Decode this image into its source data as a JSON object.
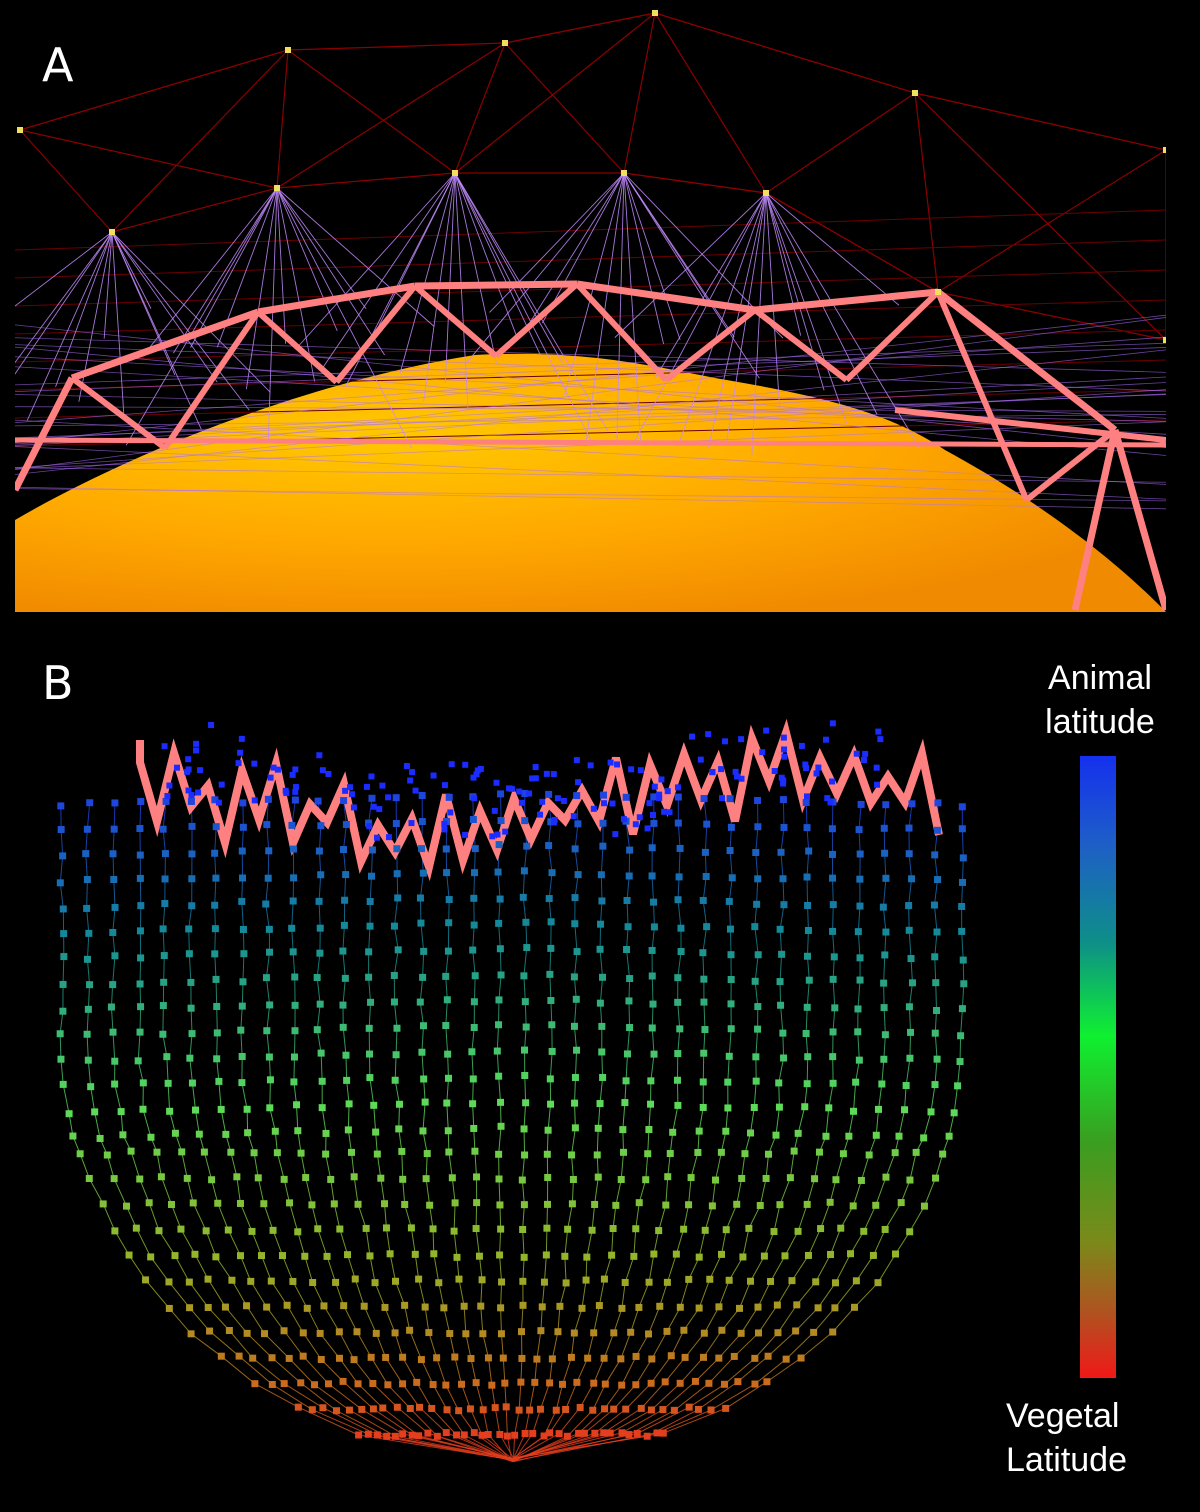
{
  "panels": {
    "a": {
      "label": "A"
    },
    "b": {
      "label": "B"
    }
  },
  "legend": {
    "top_line1": "Animal",
    "top_line2": "latitude",
    "bottom_line1": "Vegetal",
    "bottom_line2": "Latitude",
    "gradient_top": "#1430ee",
    "gradient_bottom": "#f01818"
  },
  "colors": {
    "background": "#000000",
    "yolk": "#ffb400",
    "membrane_network": "#ff8080",
    "cell_lines": "#b070ff",
    "outer_network": "#8b0000"
  }
}
